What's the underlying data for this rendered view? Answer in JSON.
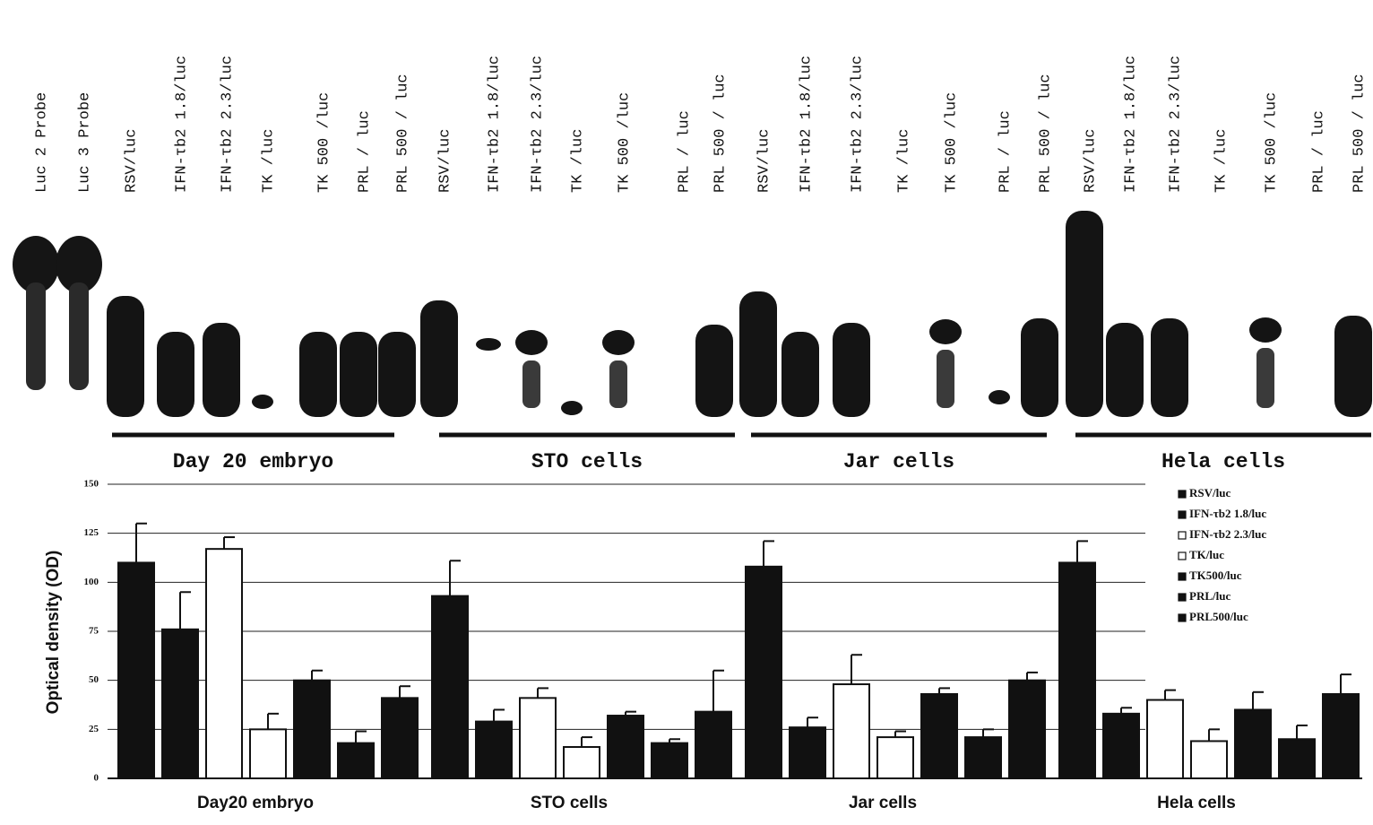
{
  "blot": {
    "lanes": [
      "Luc 2 Probe",
      "Luc 3 Probe",
      "RSV/luc",
      "IFN-τb2 1.8/luc",
      "IFN-τb2 2.3/luc",
      "TK /luc",
      "TK 500 /luc",
      "PRL / luc",
      "PRL 500 / luc",
      "RSV/luc",
      "IFN-τb2 1.8/luc",
      "IFN-τb2 2.3/luc",
      "TK /luc",
      "TK 500 /luc",
      "PRL / luc",
      "PRL 500 / luc",
      "RSV/luc",
      "IFN-τb2 1.8/luc",
      "IFN-τb2 2.3/luc",
      "TK /luc",
      "TK 500 /luc",
      "PRL / luc",
      "PRL 500 / luc",
      "RSV/luc",
      "IFN-τb2 1.8/luc",
      "IFN-τb2 2.3/luc",
      "TK /luc",
      "TK 500 /luc",
      "PRL / luc",
      "PRL 500 / luc"
    ],
    "groups": [
      "Day 20 embryo",
      "STO cells",
      "Jar cells",
      "Hela cells"
    ]
  },
  "chart_data": {
    "type": "bar",
    "ylabel": "Optical density (OD)",
    "categories": [
      "Day20 embryo",
      "STO cells",
      "Jar cells",
      "Hela cells"
    ],
    "ylim": [
      0,
      150
    ],
    "yticks": [
      0,
      25,
      50,
      75,
      100,
      125,
      150
    ],
    "grid": true,
    "legend": "upper right",
    "series": [
      {
        "name": "RSV/luc",
        "color": "#111111",
        "values": [
          110,
          93,
          108,
          110
        ],
        "errors": [
          20,
          18,
          13,
          11
        ]
      },
      {
        "name": "IFN-τb2 1.8/luc",
        "color": "#111111",
        "values": [
          76,
          29,
          26,
          33
        ],
        "errors": [
          19,
          6,
          5,
          3
        ]
      },
      {
        "name": "IFN-τb2 2.3/luc",
        "color": "#ffffff",
        "values": [
          117,
          41,
          48,
          40
        ],
        "errors": [
          6,
          5,
          15,
          5
        ]
      },
      {
        "name": "TK/luc",
        "color": "#ffffff",
        "values": [
          25,
          16,
          21,
          19
        ],
        "errors": [
          8,
          5,
          3,
          6
        ]
      },
      {
        "name": "TK500/luc",
        "color": "#111111",
        "values": [
          50,
          32,
          43,
          35
        ],
        "errors": [
          5,
          2,
          3,
          9
        ]
      },
      {
        "name": "PRL/luc",
        "color": "#111111",
        "values": [
          18,
          18,
          21,
          20
        ],
        "errors": [
          6,
          2,
          4,
          7
        ]
      },
      {
        "name": "PRL500/luc",
        "color": "#111111",
        "values": [
          41,
          34,
          50,
          43
        ],
        "errors": [
          6,
          21,
          4,
          10
        ]
      }
    ]
  }
}
